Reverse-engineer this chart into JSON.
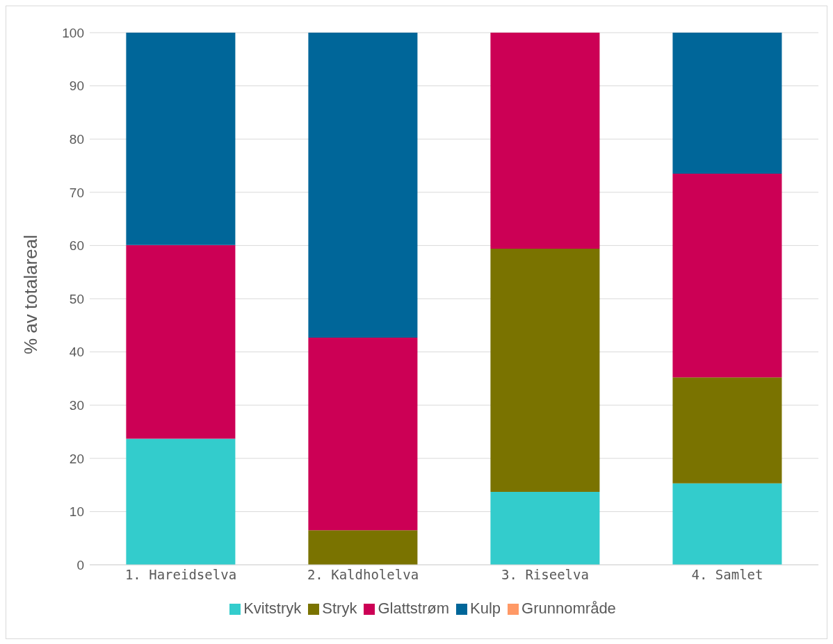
{
  "chart_data": {
    "type": "bar",
    "stacked": true,
    "ylabel": "% av totalareal",
    "categories": [
      "1. Hareidselva",
      "2. Kaldholelva",
      "3. Riseelva",
      "4. Samlet"
    ],
    "series": [
      {
        "name": "Kvitstryk",
        "color": "#33cccc",
        "values": [
          23.7,
          0,
          13.7,
          15.3
        ]
      },
      {
        "name": "Stryk",
        "color": "#7a7300",
        "values": [
          0,
          6.5,
          45.7,
          19.9
        ]
      },
      {
        "name": "Glattstrøm",
        "color": "#cc0055",
        "values": [
          36.4,
          36.2,
          40.6,
          38.3
        ]
      },
      {
        "name": "Kulp",
        "color": "#006699",
        "values": [
          39.9,
          57.3,
          0,
          26.5
        ]
      },
      {
        "name": "Grunnområde",
        "color": "#ff9966",
        "values": [
          0,
          0,
          0,
          0
        ]
      }
    ],
    "ylim": [
      0,
      100
    ],
    "yticks": [
      0,
      10,
      20,
      30,
      40,
      50,
      60,
      70,
      80,
      90,
      100
    ],
    "grid": "y",
    "legend": "bottom"
  }
}
